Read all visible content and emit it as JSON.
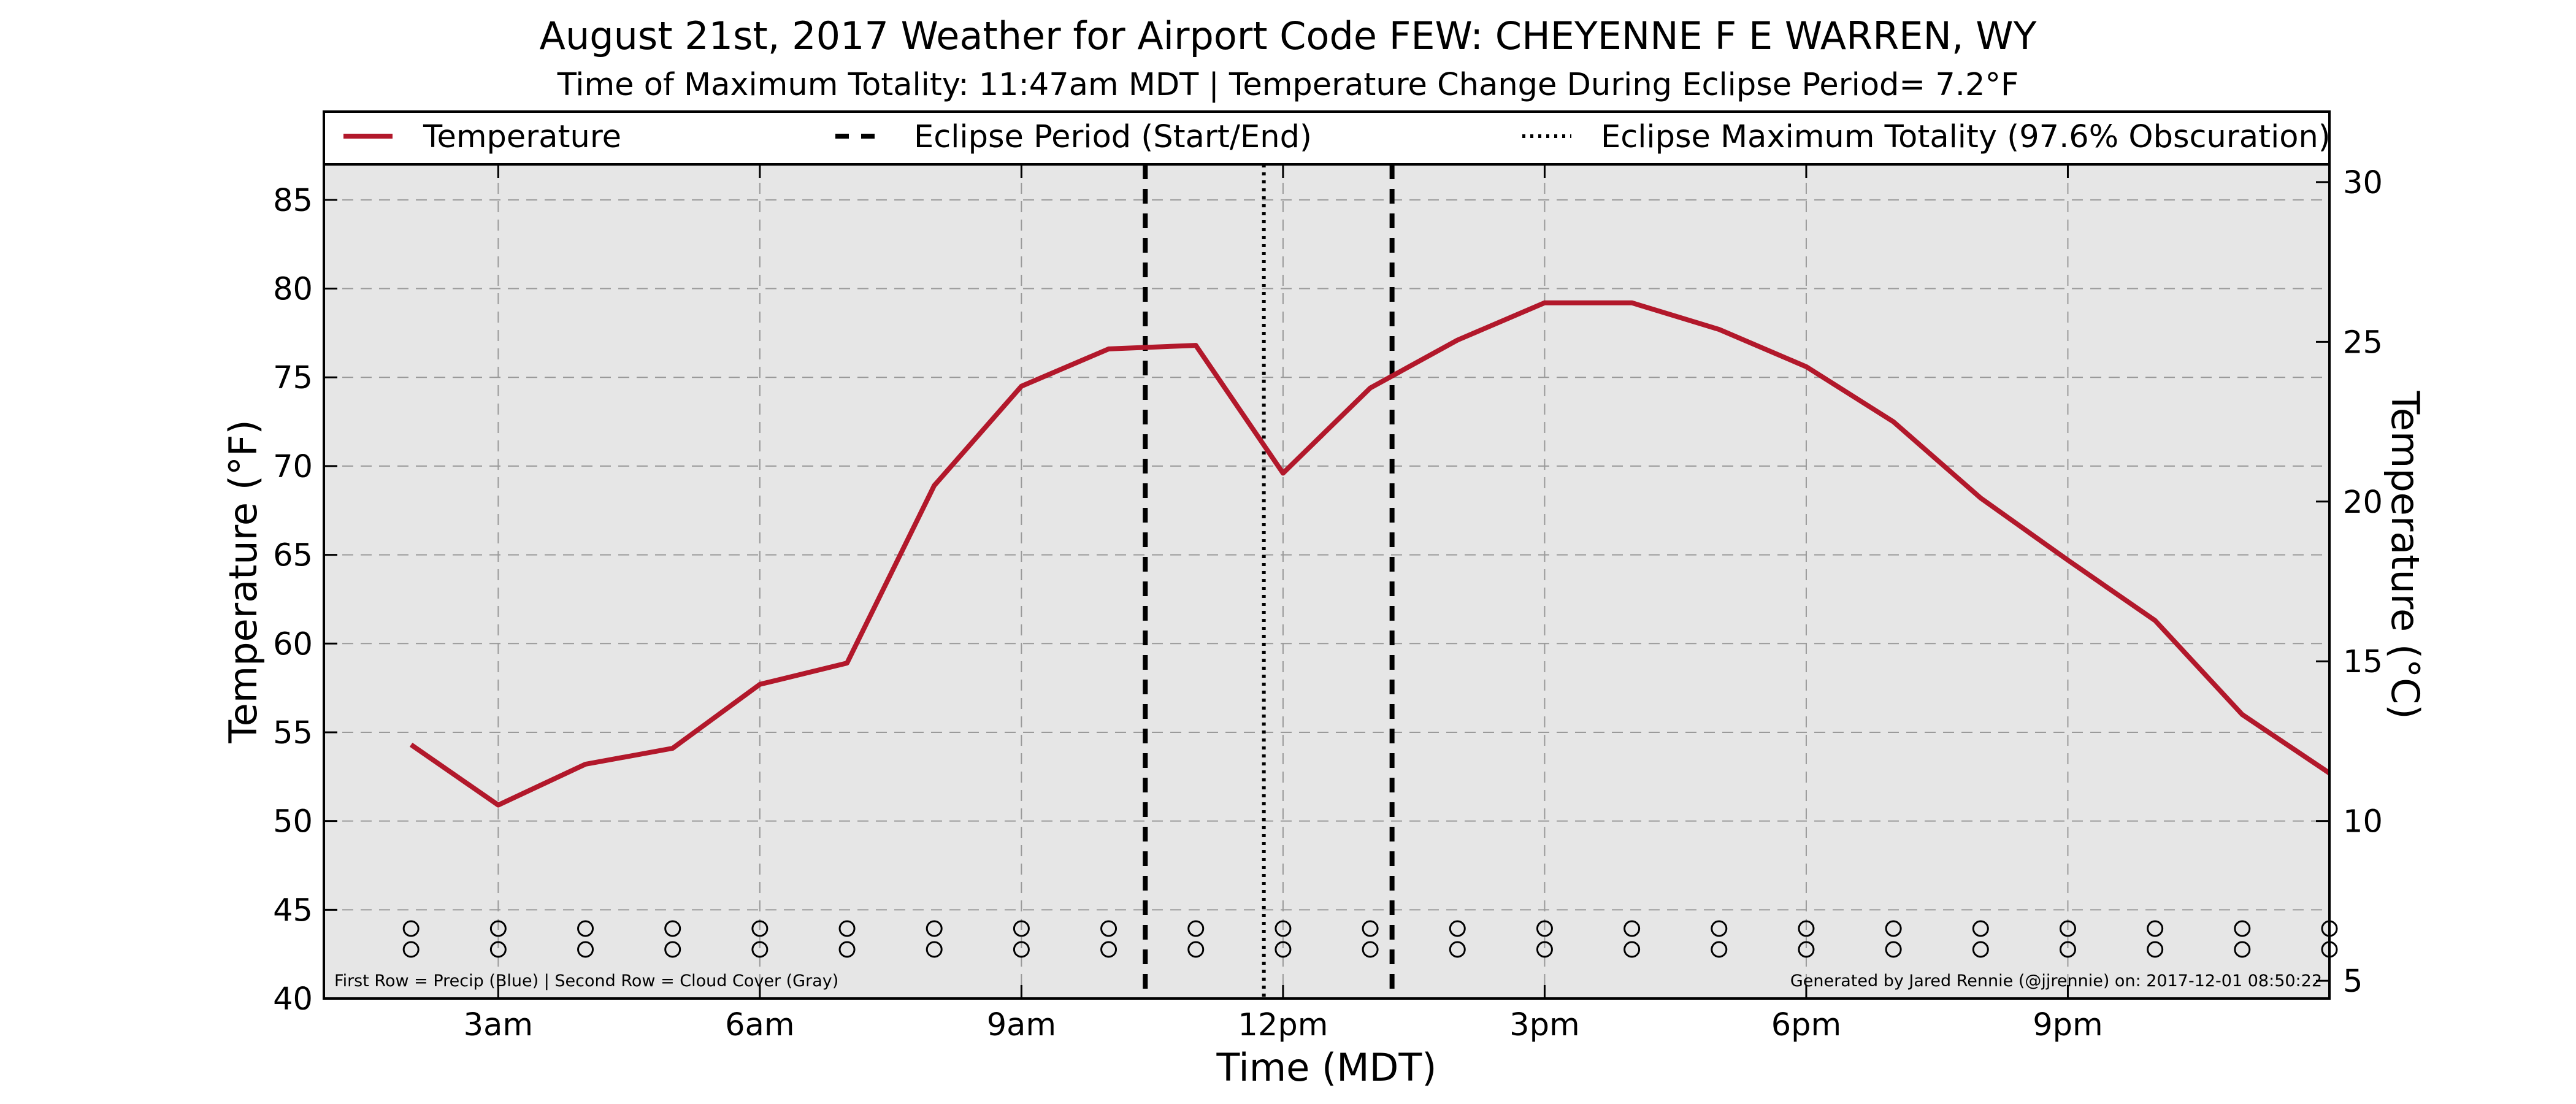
{
  "chart_data": {
    "type": "line",
    "title": "August 21st, 2017 Weather for Airport Code FEW: CHEYENNE F E WARREN, WY",
    "subtitle": "Time of Maximum Totality: 11:47am MDT | Temperature Change During Eclipse Period= 7.2°F",
    "xlabel": "Time (MDT)",
    "ylabel": "Temperature (°F)",
    "ylabel_right": "Temperature (°C)",
    "xlim": [
      1,
      24
    ],
    "ylim": [
      40,
      87
    ],
    "ylim_right_c": [
      4.444,
      30.556
    ],
    "x_ticks": [
      {
        "value": 3,
        "label": "3am"
      },
      {
        "value": 6,
        "label": "6am"
      },
      {
        "value": 9,
        "label": "9am"
      },
      {
        "value": 12,
        "label": "12pm"
      },
      {
        "value": 15,
        "label": "3pm"
      },
      {
        "value": 18,
        "label": "6pm"
      },
      {
        "value": 21,
        "label": "9pm"
      }
    ],
    "y_ticks": [
      40,
      45,
      50,
      55,
      60,
      65,
      70,
      75,
      80,
      85
    ],
    "y_ticks_right": [
      5,
      10,
      15,
      20,
      25,
      30
    ],
    "grid": true,
    "legend_position": "top",
    "series": [
      {
        "name": "Temperature",
        "color": "#b2182b",
        "x": [
          2,
          3,
          4,
          5,
          6,
          7,
          8,
          9,
          10,
          11,
          12,
          13,
          14,
          15,
          16,
          17,
          18,
          19,
          20,
          21,
          22,
          23,
          24
        ],
        "y": [
          54.3,
          50.9,
          53.2,
          54.1,
          57.7,
          58.9,
          68.9,
          74.5,
          76.6,
          76.8,
          69.6,
          74.4,
          77.1,
          79.2,
          79.2,
          77.7,
          75.6,
          72.5,
          68.2,
          64.7,
          61.3,
          56.0,
          52.7
        ]
      }
    ],
    "eclipse_start_x": 10.42,
    "eclipse_end_x": 13.25,
    "eclipse_max_x": 11.78,
    "legend": {
      "temperature": "Temperature",
      "eclipse_period": "Eclipse Period (Start/End)",
      "eclipse_max": "Eclipse Maximum Totality (97.6% Obscuration)"
    },
    "marker_rows": {
      "x": [
        2,
        3,
        4,
        5,
        6,
        7,
        8,
        9,
        10,
        11,
        12,
        13,
        14,
        15,
        16,
        17,
        18,
        19,
        20,
        21,
        22,
        23,
        24
      ],
      "glyph": "O"
    },
    "annotation_left": "First Row = Precip (Blue) | Second Row = Cloud Cover (Gray)",
    "annotation_right": "Generated by Jared Rennie (@jjrennie) on: 2017-12-01 08:50:22"
  },
  "colors": {
    "plot_background": "#e6e6e6",
    "temperature_line": "#b2182b",
    "eclipse_lines": "#000000"
  }
}
